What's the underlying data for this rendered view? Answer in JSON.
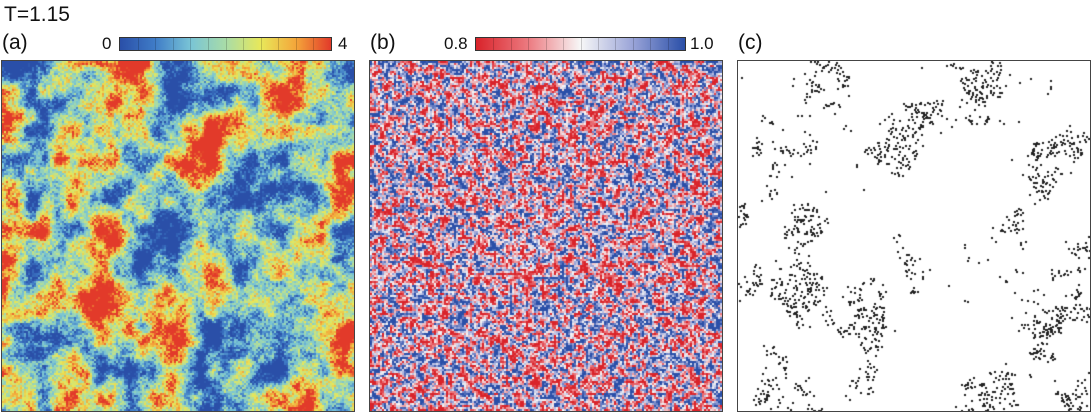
{
  "figure": {
    "title": "T=1.15",
    "panels": [
      {
        "id": "a",
        "label": "(a)",
        "colorbar": {
          "min_label": "0",
          "max_label": "4",
          "min": 0,
          "max": 4,
          "colors": [
            "#2a4fa8",
            "#3f7cc7",
            "#79c4d6",
            "#a8dca8",
            "#e8e85a",
            "#f4a63a",
            "#e23a2a"
          ]
        }
      },
      {
        "id": "b",
        "label": "(b)",
        "colorbar": {
          "min_label": "0.8",
          "max_label": "1.0",
          "min": 0.8,
          "max": 1.0,
          "colors": [
            "#d9232a",
            "#ec7a80",
            "#f7f7f7",
            "#9aa4d8",
            "#2a4fa8"
          ]
        }
      },
      {
        "id": "c",
        "label": "(c)",
        "colors": [
          "#ffffff",
          "#222222"
        ]
      }
    ]
  }
}
